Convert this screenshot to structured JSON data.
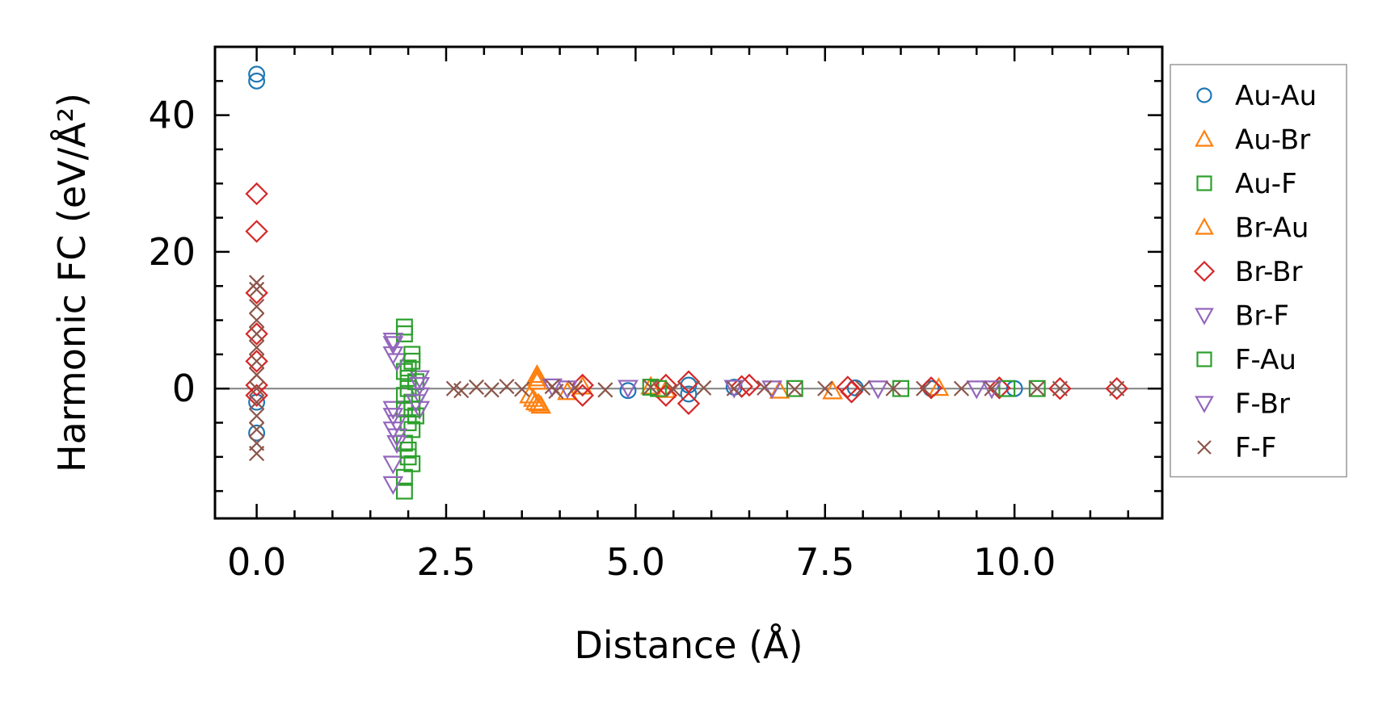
{
  "chart_data": {
    "type": "scatter",
    "title": "",
    "xlabel": "Distance (Å)",
    "ylabel": "Harmonic FC (eV/Å²)",
    "xlim": [
      -0.55,
      11.95
    ],
    "ylim": [
      -19,
      50
    ],
    "x_ticks": [
      0.0,
      2.5,
      5.0,
      7.5,
      10.0
    ],
    "x_tick_labels": [
      "0.0",
      "2.5",
      "5.0",
      "7.5",
      "10.0"
    ],
    "y_ticks": [
      0,
      20,
      40
    ],
    "y_tick_labels": [
      "0",
      "20",
      "40"
    ],
    "zero_line": true,
    "grid": false,
    "legend_position": "outside-right",
    "series": [
      {
        "name": "Au-Au",
        "color": "#1f77b4",
        "marker": "circle",
        "points": [
          [
            0,
            46
          ],
          [
            0,
            45
          ],
          [
            0,
            -2
          ],
          [
            0,
            -6.5
          ],
          [
            4.9,
            -0.3
          ],
          [
            5.7,
            0.5
          ],
          [
            5.7,
            -0.8
          ],
          [
            6.3,
            0.2
          ],
          [
            7.9,
            0.1
          ],
          [
            8.9,
            0.0
          ],
          [
            10.0,
            0.0
          ]
        ]
      },
      {
        "name": "Au-Br",
        "color": "#ff7f0e",
        "marker": "triangle-up",
        "points": [
          [
            3.7,
            2.0
          ],
          [
            3.7,
            1.0
          ],
          [
            3.65,
            -1.5
          ],
          [
            3.72,
            -2.2
          ],
          [
            3.75,
            -2.5
          ],
          [
            3.6,
            -1.0
          ],
          [
            4.1,
            -0.5
          ],
          [
            5.2,
            0.3
          ],
          [
            6.9,
            -0.3
          ],
          [
            7.6,
            -0.4
          ],
          [
            9.0,
            0.1
          ]
        ]
      },
      {
        "name": "Au-F",
        "color": "#2ca02c",
        "marker": "square",
        "points": [
          [
            1.95,
            9
          ],
          [
            1.95,
            2.5
          ],
          [
            1.95,
            -3
          ],
          [
            1.95,
            -8
          ],
          [
            1.95,
            -13
          ],
          [
            1.95,
            -15
          ],
          [
            2.0,
            3
          ],
          [
            2.0,
            0
          ],
          [
            2.0,
            -5
          ],
          [
            2.0,
            -10
          ],
          [
            2.05,
            5
          ],
          [
            2.05,
            -2
          ],
          [
            2.05,
            -6
          ],
          [
            2.05,
            -11
          ],
          [
            2.1,
            1
          ],
          [
            2.1,
            -4
          ],
          [
            5.2,
            0.2
          ],
          [
            7.1,
            0.0
          ],
          [
            10.3,
            0.0
          ]
        ]
      },
      {
        "name": "Br-Au",
        "color": "#ff7f0e",
        "marker": "triangle-up",
        "points": [
          [
            3.7,
            1.5
          ],
          [
            3.68,
            -2.0
          ],
          [
            4.3,
            0.3
          ],
          [
            5.4,
            -0.2
          ]
        ]
      },
      {
        "name": "Br-Br",
        "color": "#d62728",
        "marker": "diamond",
        "points": [
          [
            0,
            28.5
          ],
          [
            0,
            23
          ],
          [
            0,
            14
          ],
          [
            0,
            8
          ],
          [
            0,
            4
          ],
          [
            0,
            0.5
          ],
          [
            0,
            -1
          ],
          [
            4.3,
            0.5
          ],
          [
            4.3,
            -1.0
          ],
          [
            5.4,
            0.5
          ],
          [
            5.4,
            -1.0
          ],
          [
            5.7,
            1.0
          ],
          [
            5.7,
            -2.2
          ],
          [
            6.4,
            0.3
          ],
          [
            6.5,
            0.5
          ],
          [
            7.8,
            0.2
          ],
          [
            7.85,
            -0.5
          ],
          [
            8.9,
            0.1
          ],
          [
            9.8,
            0.1
          ],
          [
            10.6,
            0.0
          ],
          [
            11.35,
            0.0
          ]
        ]
      },
      {
        "name": "Br-F",
        "color": "#9467bd",
        "marker": "triangle-down",
        "points": [
          [
            1.8,
            7
          ],
          [
            1.8,
            5
          ],
          [
            1.8,
            -3
          ],
          [
            1.8,
            -6
          ],
          [
            1.8,
            -11
          ],
          [
            1.8,
            -14
          ],
          [
            1.85,
            4
          ],
          [
            1.85,
            -5
          ],
          [
            1.85,
            -8
          ],
          [
            2.15,
            1.5
          ],
          [
            2.15,
            -1
          ],
          [
            2.15,
            -3
          ],
          [
            3.9,
            0.3
          ],
          [
            4.9,
            0.1
          ],
          [
            6.8,
            0.0
          ],
          [
            9.5,
            0.0
          ]
        ]
      },
      {
        "name": "F-Au",
        "color": "#2ca02c",
        "marker": "square",
        "points": [
          [
            1.95,
            8
          ],
          [
            1.95,
            -1
          ],
          [
            2.0,
            1.5
          ],
          [
            2.0,
            -9
          ],
          [
            2.05,
            -3
          ],
          [
            2.05,
            4
          ],
          [
            5.3,
            0.0
          ],
          [
            8.5,
            0.0
          ],
          [
            9.9,
            0.0
          ]
        ]
      },
      {
        "name": "F-Br",
        "color": "#9467bd",
        "marker": "triangle-down",
        "points": [
          [
            1.8,
            6.5
          ],
          [
            1.8,
            -4
          ],
          [
            1.85,
            -7
          ],
          [
            2.1,
            -2
          ],
          [
            2.15,
            0.5
          ],
          [
            4.1,
            0.0
          ],
          [
            6.3,
            0.1
          ],
          [
            8.2,
            0.0
          ],
          [
            9.7,
            0.0
          ]
        ]
      },
      {
        "name": "F-F",
        "color": "#8c564b",
        "marker": "x",
        "points": [
          [
            0,
            15.5
          ],
          [
            0,
            14.5
          ],
          [
            0,
            12
          ],
          [
            0,
            10
          ],
          [
            0,
            8
          ],
          [
            0,
            6
          ],
          [
            0,
            4
          ],
          [
            0,
            2
          ],
          [
            0,
            0
          ],
          [
            0,
            -2
          ],
          [
            0,
            -4
          ],
          [
            0,
            -6
          ],
          [
            0,
            -8
          ],
          [
            0,
            -9.5
          ],
          [
            2.6,
            0.0
          ],
          [
            2.7,
            -0.3
          ],
          [
            2.9,
            0.2
          ],
          [
            3.1,
            -0.2
          ],
          [
            3.3,
            0.3
          ],
          [
            3.5,
            -0.1
          ],
          [
            3.9,
            0.3
          ],
          [
            3.95,
            -0.4
          ],
          [
            4.2,
            0.1
          ],
          [
            4.6,
            -0.2
          ],
          [
            5.2,
            0.2
          ],
          [
            5.5,
            -0.1
          ],
          [
            5.9,
            0.1
          ],
          [
            6.3,
            0.0
          ],
          [
            6.7,
            0.1
          ],
          [
            7.1,
            -0.1
          ],
          [
            7.5,
            0.0
          ],
          [
            8.0,
            0.1
          ],
          [
            8.4,
            0.0
          ],
          [
            8.8,
            0.0
          ],
          [
            9.3,
            0.0
          ],
          [
            9.7,
            0.0
          ],
          [
            10.3,
            0.0
          ],
          [
            10.6,
            0.0
          ],
          [
            11.35,
            0.0
          ]
        ]
      }
    ]
  }
}
